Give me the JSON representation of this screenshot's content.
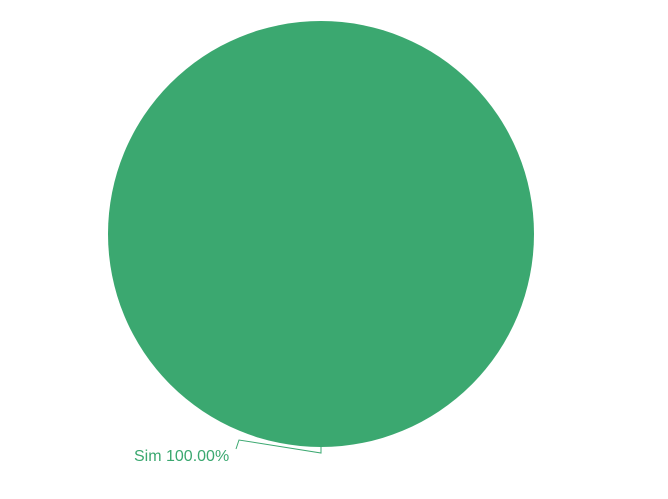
{
  "chart_data": {
    "type": "pie",
    "slices": [
      {
        "label": "Sim",
        "value": 100.0,
        "percent_label": "100.00%",
        "color": "#3ba870"
      }
    ]
  }
}
